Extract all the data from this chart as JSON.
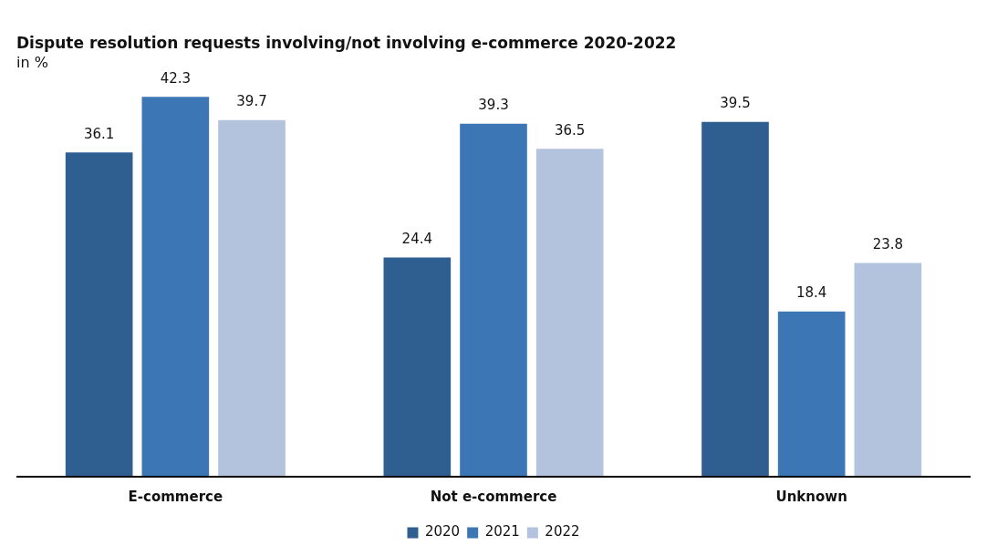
{
  "chart_data": {
    "type": "bar",
    "title": "Dispute resolution requests involving/not involving e-commerce 2020-2022",
    "subtitle": "in %",
    "categories": [
      "E-commerce",
      "Not e-commerce",
      "Unknown"
    ],
    "series": [
      {
        "name": "2020",
        "color": "#2f5f91",
        "values": [
          36.1,
          24.4,
          39.5
        ]
      },
      {
        "name": "2021",
        "color": "#3d76b4",
        "values": [
          42.3,
          39.3,
          18.4
        ]
      },
      {
        "name": "2022",
        "color": "#b3c3de",
        "values": [
          39.7,
          36.5,
          23.8
        ]
      }
    ],
    "data_labels": true,
    "legend": "bottom",
    "grid": false
  }
}
